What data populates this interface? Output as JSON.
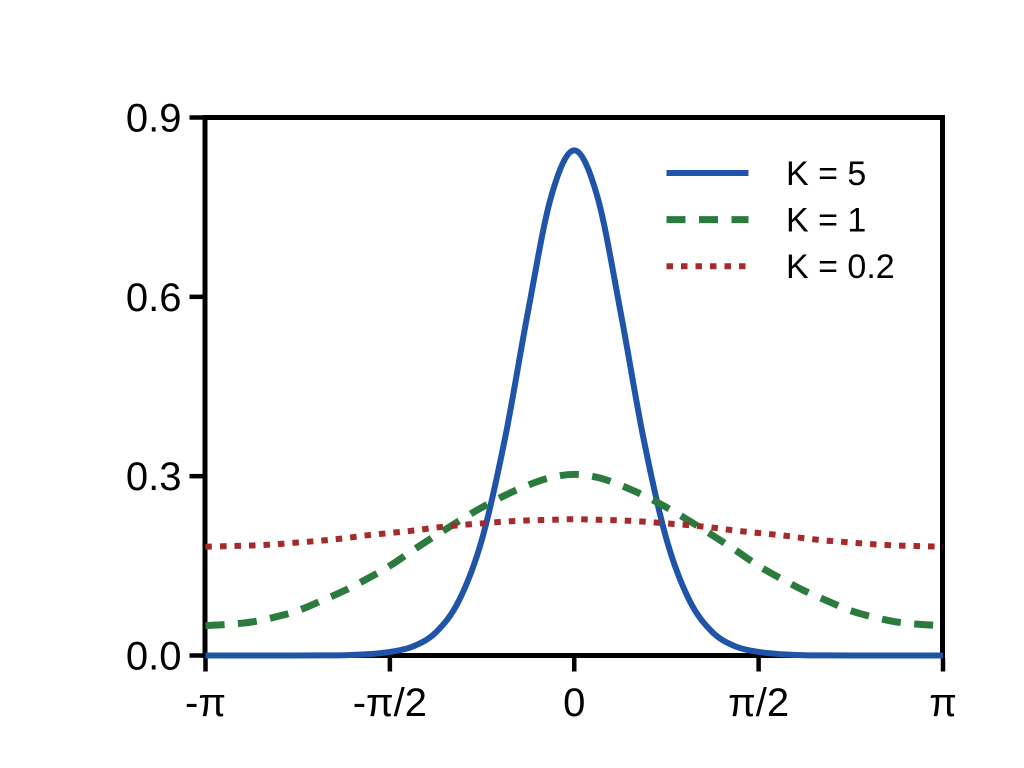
{
  "chart_data": {
    "type": "line",
    "title": "",
    "xlabel": "",
    "ylabel": "",
    "background_color": "#ffffff",
    "axis_color": "#000000",
    "grid": false,
    "legend_position": "upper-right-inside",
    "xlim_over_pi": [
      -1,
      1
    ],
    "ylim": [
      0,
      0.9
    ],
    "x_ticks": [
      {
        "value_over_pi": -1,
        "label": "-π"
      },
      {
        "value_over_pi": -0.5,
        "label": "-π/2"
      },
      {
        "value_over_pi": 0,
        "label": "0"
      },
      {
        "value_over_pi": 0.5,
        "label": "π/2"
      },
      {
        "value_over_pi": 1,
        "label": "π"
      }
    ],
    "y_ticks": [
      {
        "value": 0.0,
        "label": "0.0"
      },
      {
        "value": 0.3,
        "label": "0.3"
      },
      {
        "value": 0.6,
        "label": "0.6"
      },
      {
        "value": 0.9,
        "label": "0.9"
      }
    ],
    "x_unit": "angle in multiples of pi",
    "x_over_pi": [
      -1,
      -0.9375,
      -0.875,
      -0.8125,
      -0.75,
      -0.6875,
      -0.625,
      -0.5625,
      -0.5,
      -0.4375,
      -0.375,
      -0.3125,
      -0.25,
      -0.1875,
      -0.125,
      -0.0625,
      0,
      0.0625,
      0.125,
      0.1875,
      0.25,
      0.3125,
      0.375,
      0.4375,
      0.5,
      0.5625,
      0.625,
      0.6875,
      0.75,
      0.8125,
      0.875,
      0.9375,
      1
    ],
    "series": [
      {
        "name": "K = 5",
        "color": "#2054a8",
        "line_style": "solid",
        "peak_value": 0.845,
        "values": [
          0,
          0,
          0,
          0,
          0,
          0.0001,
          0.0004,
          0.002,
          0.006,
          0.015,
          0.039,
          0.092,
          0.195,
          0.364,
          0.577,
          0.768,
          0.845,
          0.768,
          0.577,
          0.364,
          0.195,
          0.092,
          0.039,
          0.015,
          0.006,
          0.002,
          0.0004,
          0.0001,
          0,
          0,
          0,
          0,
          0
        ]
      },
      {
        "name": "K = 1",
        "color": "#2c7b3e",
        "line_style": "dashed",
        "peak_value": 0.303,
        "values": [
          0.05,
          0.052,
          0.056,
          0.064,
          0.075,
          0.091,
          0.108,
          0.128,
          0.15,
          0.176,
          0.201,
          0.225,
          0.248,
          0.268,
          0.285,
          0.298,
          0.303,
          0.298,
          0.285,
          0.268,
          0.248,
          0.225,
          0.201,
          0.176,
          0.15,
          0.128,
          0.108,
          0.091,
          0.075,
          0.064,
          0.056,
          0.052,
          0.05
        ]
      },
      {
        "name": "K = 0.2",
        "color": "#a52a2a",
        "line_style": "dotted",
        "peak_value": 0.228,
        "values": [
          0.182,
          0.183,
          0.184,
          0.186,
          0.189,
          0.192,
          0.196,
          0.201,
          0.205,
          0.209,
          0.214,
          0.218,
          0.221,
          0.224,
          0.226,
          0.227,
          0.228,
          0.227,
          0.226,
          0.224,
          0.221,
          0.218,
          0.214,
          0.209,
          0.205,
          0.201,
          0.196,
          0.192,
          0.189,
          0.186,
          0.184,
          0.183,
          0.182
        ]
      }
    ]
  }
}
